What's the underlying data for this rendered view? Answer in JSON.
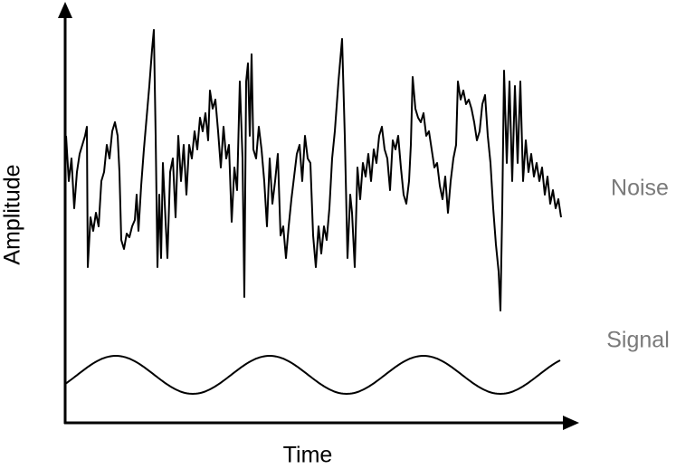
{
  "axes": {
    "x_label": "Time",
    "y_label": "Amplitude"
  },
  "curves": {
    "noise_label": "Noise",
    "signal_label": "Signal"
  }
}
